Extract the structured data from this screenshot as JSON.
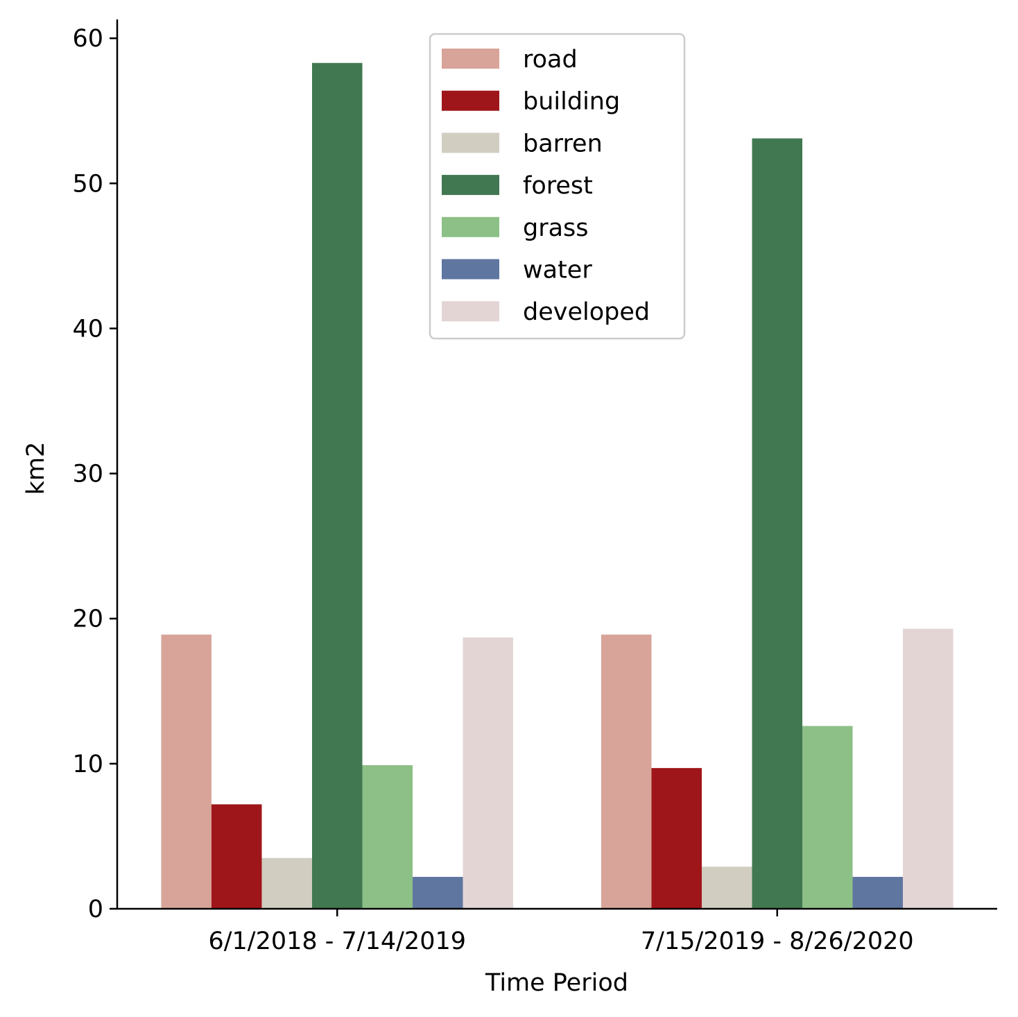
{
  "chart_data": {
    "type": "bar",
    "xlabel": "Time Period",
    "ylabel": "km2",
    "ylim": [
      0,
      61.3
    ],
    "yticks": [
      0,
      10,
      20,
      30,
      40,
      50,
      60
    ],
    "categories": [
      "6/1/2018 - 7/14/2019",
      "7/15/2019 - 8/26/2020"
    ],
    "series": [
      {
        "name": "road",
        "color": "#d8a499",
        "values": [
          18.9,
          18.9
        ]
      },
      {
        "name": "building",
        "color": "#9e1619",
        "values": [
          7.2,
          9.7
        ]
      },
      {
        "name": "barren",
        "color": "#d1cdc1",
        "values": [
          3.5,
          2.9
        ]
      },
      {
        "name": "forest",
        "color": "#417851",
        "values": [
          58.3,
          53.1
        ]
      },
      {
        "name": "grass",
        "color": "#8dc087",
        "values": [
          9.9,
          12.6
        ]
      },
      {
        "name": "water",
        "color": "#5f76a0",
        "values": [
          2.2,
          2.2
        ]
      },
      {
        "name": "developed",
        "color": "#e4d5d5",
        "values": [
          18.7,
          19.3
        ]
      }
    ],
    "legend_position": "top-center",
    "grid": false
  }
}
